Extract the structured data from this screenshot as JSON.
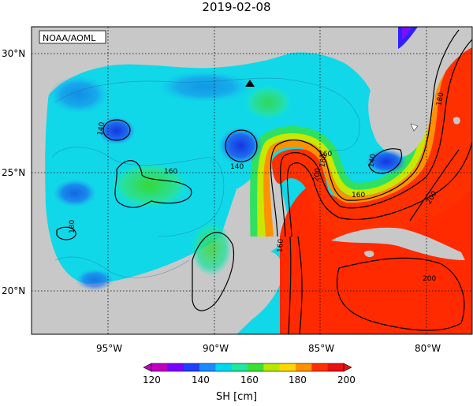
{
  "title": "2019-02-08",
  "credit": "NOAA/AOML",
  "lat_labels": [
    "30°N",
    "25°N",
    "20°N"
  ],
  "lon_labels": [
    "95°W",
    "90°W",
    "85°W",
    "80°W"
  ],
  "contour_labels": [
    "140",
    "140",
    "160",
    "160",
    "160",
    "180",
    "200",
    "180",
    "160",
    "200",
    "200",
    "180",
    "140"
  ],
  "colorbar": {
    "label": "SH [cm]",
    "ticks": [
      "120",
      "140",
      "160",
      "180",
      "200"
    ],
    "colors": [
      "#c000c0",
      "#7a00ff",
      "#1f3fff",
      "#1a8cff",
      "#00d8f0",
      "#20e8a0",
      "#3ce030",
      "#b8e800",
      "#ffd800",
      "#ff9000",
      "#ff3000",
      "#e81010"
    ]
  },
  "marker": "triangle-marker"
}
